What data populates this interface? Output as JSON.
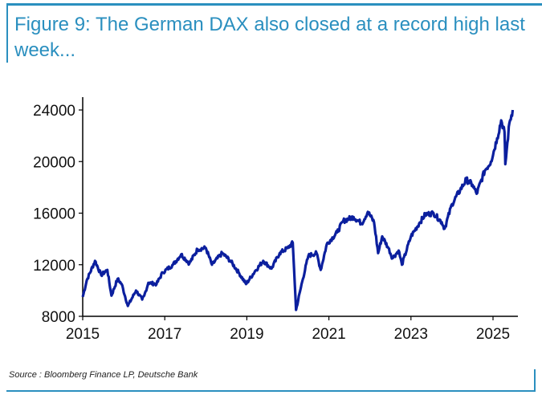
{
  "title": "Figure 9: The German DAX also closed at a record high last week...",
  "source": "Source : Bloomberg Finance LP, Deutsche Bank",
  "chart_data": {
    "type": "line",
    "title": "Figure 9: The German DAX also closed at a record high last week...",
    "xlabel": "",
    "ylabel": "",
    "xlim": [
      2015,
      2025.45
    ],
    "ylim": [
      8000,
      25000
    ],
    "xticks": [
      "2015",
      "2017",
      "2019",
      "2021",
      "2023",
      "2025"
    ],
    "yticks": [
      "8000",
      "12000",
      "16000",
      "20000",
      "24000"
    ],
    "grid": false,
    "color": "#0b1f9e",
    "series": [
      {
        "x": [
          2015.0,
          2015.1,
          2015.3,
          2015.45,
          2015.6,
          2015.7,
          2015.85,
          2015.95,
          2016.1,
          2016.3,
          2016.45,
          2016.5,
          2016.6,
          2016.8,
          2016.95,
          2017.2,
          2017.4,
          2017.6,
          2017.8,
          2018.0,
          2018.15,
          2018.4,
          2018.6,
          2018.8,
          2018.98,
          2019.2,
          2019.4,
          2019.6,
          2019.8,
          2020.0,
          2020.12,
          2020.2,
          2020.35,
          2020.5,
          2020.7,
          2020.8,
          2020.95,
          2021.2,
          2021.35,
          2021.6,
          2021.8,
          2021.95,
          2022.1,
          2022.2,
          2022.3,
          2022.45,
          2022.55,
          2022.7,
          2022.78,
          2023.0,
          2023.2,
          2023.35,
          2023.55,
          2023.75,
          2023.82,
          2024.0,
          2024.2,
          2024.35,
          2024.5,
          2024.6,
          2024.8,
          2024.95,
          2025.1,
          2025.2,
          2025.28,
          2025.3,
          2025.4,
          2025.48
        ],
        "values": [
          9500,
          10800,
          12300,
          11200,
          11600,
          9600,
          10900,
          10500,
          8800,
          10000,
          9300,
          9600,
          10600,
          10500,
          11400,
          12000,
          12800,
          12100,
          13200,
          13300,
          12000,
          12900,
          12300,
          11400,
          10500,
          11500,
          12300,
          11700,
          12900,
          13300,
          13700,
          8500,
          10700,
          12700,
          12900,
          11600,
          13600,
          14500,
          15400,
          15700,
          15200,
          16100,
          15300,
          12900,
          14200,
          13300,
          12500,
          13100,
          12000,
          14200,
          15200,
          15900,
          16000,
          15300,
          14800,
          16700,
          17800,
          18600,
          18200,
          17500,
          19300,
          20000,
          21800,
          23200,
          22300,
          19800,
          23000,
          24000
        ]
      }
    ]
  }
}
